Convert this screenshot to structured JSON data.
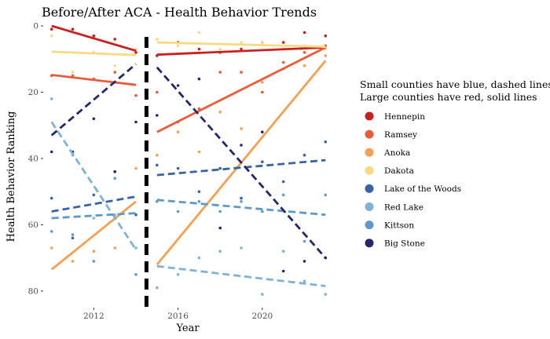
{
  "chart_data": {
    "type": "line",
    "title": "Before/After ACA - Health Behavior Trends",
    "xlabel": "Year",
    "ylabel": "Health Behavior Ranking",
    "xlim": [
      2009.6,
      2023.4
    ],
    "ylim": [
      0,
      85
    ],
    "y_reversed": true,
    "x_ticks": [
      2012,
      2016,
      2020
    ],
    "y_ticks": [
      0,
      20,
      40,
      60,
      80
    ],
    "grid": false,
    "aca_break_year": 2014.5,
    "legend": {
      "position": "right",
      "title_lines": [
        "Small counties have blue, dashed lines",
        "Large counties have red, solid lines"
      ]
    },
    "series": [
      {
        "name": "Hennepin",
        "color": "#c9211f",
        "style": "solid",
        "points": [
          [
            2010,
            1
          ],
          [
            2011,
            1
          ],
          [
            2012,
            3
          ],
          [
            2013,
            4
          ],
          [
            2014,
            8
          ],
          [
            2015,
            9
          ],
          [
            2016,
            5
          ],
          [
            2017,
            7
          ],
          [
            2018,
            8
          ],
          [
            2019,
            7
          ],
          [
            2020,
            5
          ],
          [
            2021,
            5
          ],
          [
            2022,
            2
          ],
          [
            2023,
            3
          ]
        ],
        "fit_pre": [
          [
            2010,
            0
          ],
          [
            2014,
            7.5
          ]
        ],
        "fit_post": [
          [
            2015,
            8.7
          ],
          [
            2023,
            6.5
          ]
        ]
      },
      {
        "name": "Ramsey",
        "color": "#e95c39",
        "style": "solid",
        "points": [
          [
            2010,
            15
          ],
          [
            2011,
            15
          ],
          [
            2012,
            16
          ],
          [
            2013,
            14
          ],
          [
            2014,
            21
          ],
          [
            2015,
            20
          ],
          [
            2016,
            29
          ],
          [
            2017,
            25
          ],
          [
            2018,
            14
          ],
          [
            2019,
            14
          ],
          [
            2020,
            20
          ],
          [
            2021,
            11
          ],
          [
            2022,
            8
          ],
          [
            2023,
            6
          ]
        ],
        "fit_pre": [
          [
            2010,
            14.8
          ],
          [
            2014,
            17.8
          ]
        ],
        "fit_post": [
          [
            2015,
            32
          ],
          [
            2023,
            6.5
          ]
        ]
      },
      {
        "name": "Anoka",
        "color": "#f5a052",
        "style": "solid",
        "points": [
          [
            2010,
            67
          ],
          [
            2011,
            71
          ],
          [
            2012,
            68
          ],
          [
            2013,
            67
          ],
          [
            2014,
            43
          ],
          [
            2015,
            39
          ],
          [
            2016,
            32
          ],
          [
            2017,
            38
          ],
          [
            2018,
            26
          ],
          [
            2019,
            31
          ],
          [
            2020,
            17
          ],
          [
            2021,
            13
          ],
          [
            2022,
            12
          ],
          [
            2023,
            9
          ]
        ],
        "fit_pre": [
          [
            2010,
            73.5
          ],
          [
            2014,
            53
          ]
        ],
        "fit_post": [
          [
            2015,
            72
          ],
          [
            2023,
            10.5
          ]
        ]
      },
      {
        "name": "Dakota",
        "color": "#fad982",
        "style": "solid",
        "points": [
          [
            2010,
            3
          ],
          [
            2011,
            14
          ],
          [
            2012,
            8
          ],
          [
            2013,
            12
          ],
          [
            2014,
            7
          ],
          [
            2015,
            4
          ],
          [
            2016,
            6
          ],
          [
            2017,
            2
          ],
          [
            2018,
            7
          ],
          [
            2019,
            5
          ],
          [
            2020,
            5
          ],
          [
            2021,
            7
          ],
          [
            2022,
            6
          ],
          [
            2023,
            7
          ]
        ],
        "fit_pre": [
          [
            2010,
            7.8
          ],
          [
            2014,
            8.8
          ]
        ],
        "fit_post": [
          [
            2015,
            5
          ],
          [
            2023,
            6.3
          ]
        ]
      },
      {
        "name": "Lake of the Woods",
        "color": "#3a63a3",
        "style": "dashed",
        "points": [
          [
            2010,
            52
          ],
          [
            2011,
            64
          ],
          [
            2012,
            51
          ],
          [
            2013,
            44
          ],
          [
            2014,
            57
          ],
          [
            2015,
            42
          ],
          [
            2016,
            43
          ],
          [
            2017,
            50
          ],
          [
            2018,
            43
          ],
          [
            2019,
            52
          ],
          [
            2020,
            41
          ],
          [
            2021,
            47
          ],
          [
            2022,
            39
          ],
          [
            2023,
            35
          ]
        ],
        "fit_pre": [
          [
            2010,
            56
          ],
          [
            2014,
            51.5
          ]
        ],
        "fit_post": [
          [
            2015,
            45
          ],
          [
            2023,
            40.5
          ]
        ]
      },
      {
        "name": "Red Lake",
        "color": "#7fb2d5",
        "style": "dashed",
        "points": [
          [
            2010,
            22
          ],
          [
            2011,
            39
          ],
          [
            2012,
            58
          ],
          [
            2013,
            57
          ],
          [
            2014,
            67
          ],
          [
            2015,
            79
          ],
          [
            2016,
            75
          ],
          [
            2017,
            70
          ],
          [
            2018,
            68
          ],
          [
            2019,
            67
          ],
          [
            2020,
            81
          ],
          [
            2021,
            68
          ],
          [
            2022,
            77
          ],
          [
            2023,
            81
          ]
        ],
        "fit_pre": [
          [
            2010,
            29
          ],
          [
            2014,
            67.5
          ]
        ],
        "fit_post": [
          [
            2015,
            72.5
          ],
          [
            2023,
            78.5
          ]
        ]
      },
      {
        "name": "Kittson",
        "color": "#5e9ac8",
        "style": "dashed",
        "points": [
          [
            2010,
            62
          ],
          [
            2011,
            63
          ],
          [
            2012,
            71
          ],
          [
            2013,
            46
          ],
          [
            2014,
            75
          ],
          [
            2015,
            53
          ],
          [
            2016,
            56
          ],
          [
            2017,
            53
          ],
          [
            2018,
            56
          ],
          [
            2019,
            53
          ],
          [
            2020,
            56
          ],
          [
            2021,
            51
          ],
          [
            2022,
            65
          ],
          [
            2023,
            51
          ]
        ],
        "fit_pre": [
          [
            2010,
            58
          ],
          [
            2014,
            56.5
          ]
        ],
        "fit_post": [
          [
            2015,
            52.5
          ],
          [
            2023,
            57
          ]
        ]
      },
      {
        "name": "Big Stone",
        "color": "#25276b",
        "style": "dashed",
        "points": [
          [
            2010,
            38
          ],
          [
            2011,
            38
          ],
          [
            2012,
            28
          ],
          [
            2013,
            44
          ],
          [
            2014,
            29
          ],
          [
            2015,
            27
          ],
          [
            2016,
            18
          ],
          [
            2017,
            16
          ],
          [
            2018,
            61
          ],
          [
            2019,
            36
          ],
          [
            2020,
            32
          ],
          [
            2021,
            74
          ],
          [
            2022,
            71
          ],
          [
            2023,
            70
          ]
        ],
        "fit_pre": [
          [
            2010,
            33
          ],
          [
            2014,
            11.5
          ]
        ],
        "fit_post": [
          [
            2015,
            12.5
          ],
          [
            2023,
            70
          ]
        ]
      }
    ]
  }
}
